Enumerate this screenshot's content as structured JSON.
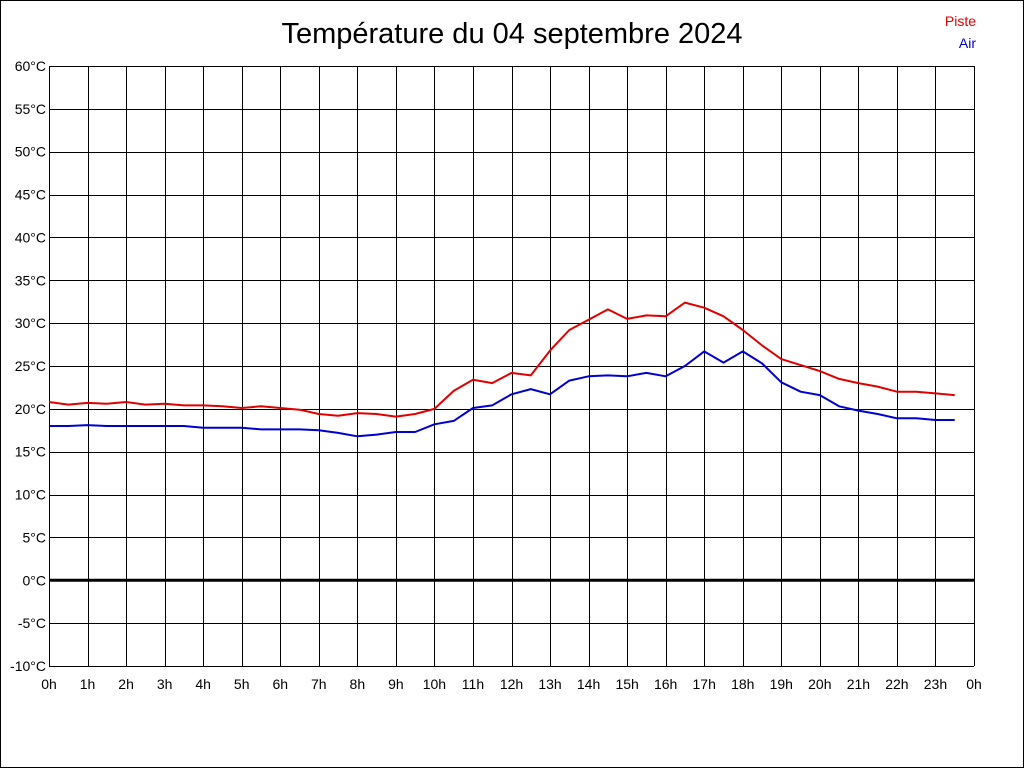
{
  "chart_data": {
    "type": "line",
    "title": "Température du 04 septembre 2024",
    "x_ticks": [
      "0h",
      "1h",
      "2h",
      "3h",
      "4h",
      "5h",
      "6h",
      "7h",
      "8h",
      "9h",
      "10h",
      "11h",
      "12h",
      "13h",
      "14h",
      "15h",
      "16h",
      "17h",
      "18h",
      "19h",
      "20h",
      "21h",
      "22h",
      "23h",
      "0h"
    ],
    "y_ticks": [
      "60°C",
      "55°C",
      "50°C",
      "45°C",
      "40°C",
      "35°C",
      "30°C",
      "25°C",
      "20°C",
      "15°C",
      "10°C",
      "5°C",
      "0°C",
      "-5°C",
      "-10°C"
    ],
    "xlim": [
      0,
      24
    ],
    "ylim": [
      -10,
      60
    ],
    "grid": true,
    "legend_position": "top-right",
    "series": [
      {
        "name": "Piste",
        "color": "#e00000",
        "x": [
          0,
          0.5,
          1,
          1.5,
          2,
          2.5,
          3,
          3.5,
          4,
          4.5,
          5,
          5.5,
          6,
          6.5,
          7,
          7.5,
          8,
          8.5,
          9,
          9.5,
          10,
          10.5,
          11,
          11.5,
          12,
          12.5,
          13,
          13.5,
          14,
          14.5,
          15,
          15.5,
          16,
          16.5,
          17,
          17.5,
          18,
          18.5,
          19,
          19.5,
          20,
          20.5,
          21,
          21.5,
          22,
          22.5,
          23,
          23.5
        ],
        "values": [
          20.8,
          20.5,
          20.7,
          20.6,
          20.8,
          20.5,
          20.6,
          20.4,
          20.4,
          20.3,
          20.1,
          20.3,
          20.1,
          19.9,
          19.4,
          19.2,
          19.5,
          19.4,
          19.1,
          19.4,
          20.0,
          22.1,
          23.4,
          23.0,
          24.2,
          23.9,
          26.8,
          29.2,
          30.4,
          31.6,
          30.5,
          30.9,
          30.8,
          32.4,
          31.8,
          30.8,
          29.2,
          27.4,
          25.8,
          25.1,
          24.4,
          23.5,
          23.0,
          22.6,
          22.0,
          22.0,
          21.8,
          21.6
        ]
      },
      {
        "name": "Air",
        "color": "#0000d0",
        "x": [
          0,
          0.5,
          1,
          1.5,
          2,
          2.5,
          3,
          3.5,
          4,
          4.5,
          5,
          5.5,
          6,
          6.5,
          7,
          7.5,
          8,
          8.5,
          9,
          9.5,
          10,
          10.5,
          11,
          11.5,
          12,
          12.5,
          13,
          13.5,
          14,
          14.5,
          15,
          15.5,
          16,
          16.5,
          17,
          17.5,
          18,
          18.5,
          19,
          19.5,
          20,
          20.5,
          21,
          21.5,
          22,
          22.5,
          23,
          23.5
        ],
        "values": [
          18.0,
          18.0,
          18.1,
          18.0,
          18.0,
          18.0,
          18.0,
          18.0,
          17.8,
          17.8,
          17.8,
          17.6,
          17.6,
          17.6,
          17.5,
          17.2,
          16.8,
          17.0,
          17.3,
          17.3,
          18.2,
          18.6,
          20.1,
          20.4,
          21.7,
          22.3,
          21.7,
          23.3,
          23.8,
          23.9,
          23.8,
          24.2,
          23.8,
          25.0,
          26.7,
          25.4,
          26.7,
          25.3,
          23.1,
          22.0,
          21.6,
          20.3,
          19.8,
          19.4,
          18.9,
          18.9,
          18.7,
          18.7
        ]
      }
    ]
  }
}
